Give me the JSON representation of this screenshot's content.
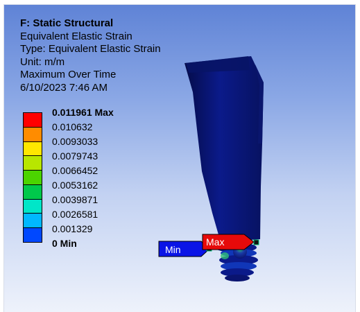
{
  "header": {
    "title": "F: Static Structural",
    "line1": "Equivalent Elastic Strain",
    "line2": "Type: Equivalent Elastic Strain",
    "line3": "Unit: m/m",
    "line4": "Maximum Over Time",
    "line5": "6/10/2023 7:46 AM"
  },
  "legend": {
    "labels": [
      "0.011961 Max",
      "0.010632",
      "0.0093033",
      "0.0079743",
      "0.0066452",
      "0.0053162",
      "0.0039871",
      "0.0026581",
      "0.001329",
      "0 Min"
    ],
    "colors": [
      "#ff0000",
      "#ff8c00",
      "#ffe600",
      "#b8e600",
      "#4bd400",
      "#00c84b",
      "#00e6c8",
      "#00b8ff",
      "#0048ff"
    ]
  },
  "probes": {
    "min_label": "Min",
    "max_label": "Max"
  },
  "colors": {
    "probe_min": "#0a14e6",
    "probe_max": "#e60a0a",
    "model_body": "#0b1a8a"
  }
}
